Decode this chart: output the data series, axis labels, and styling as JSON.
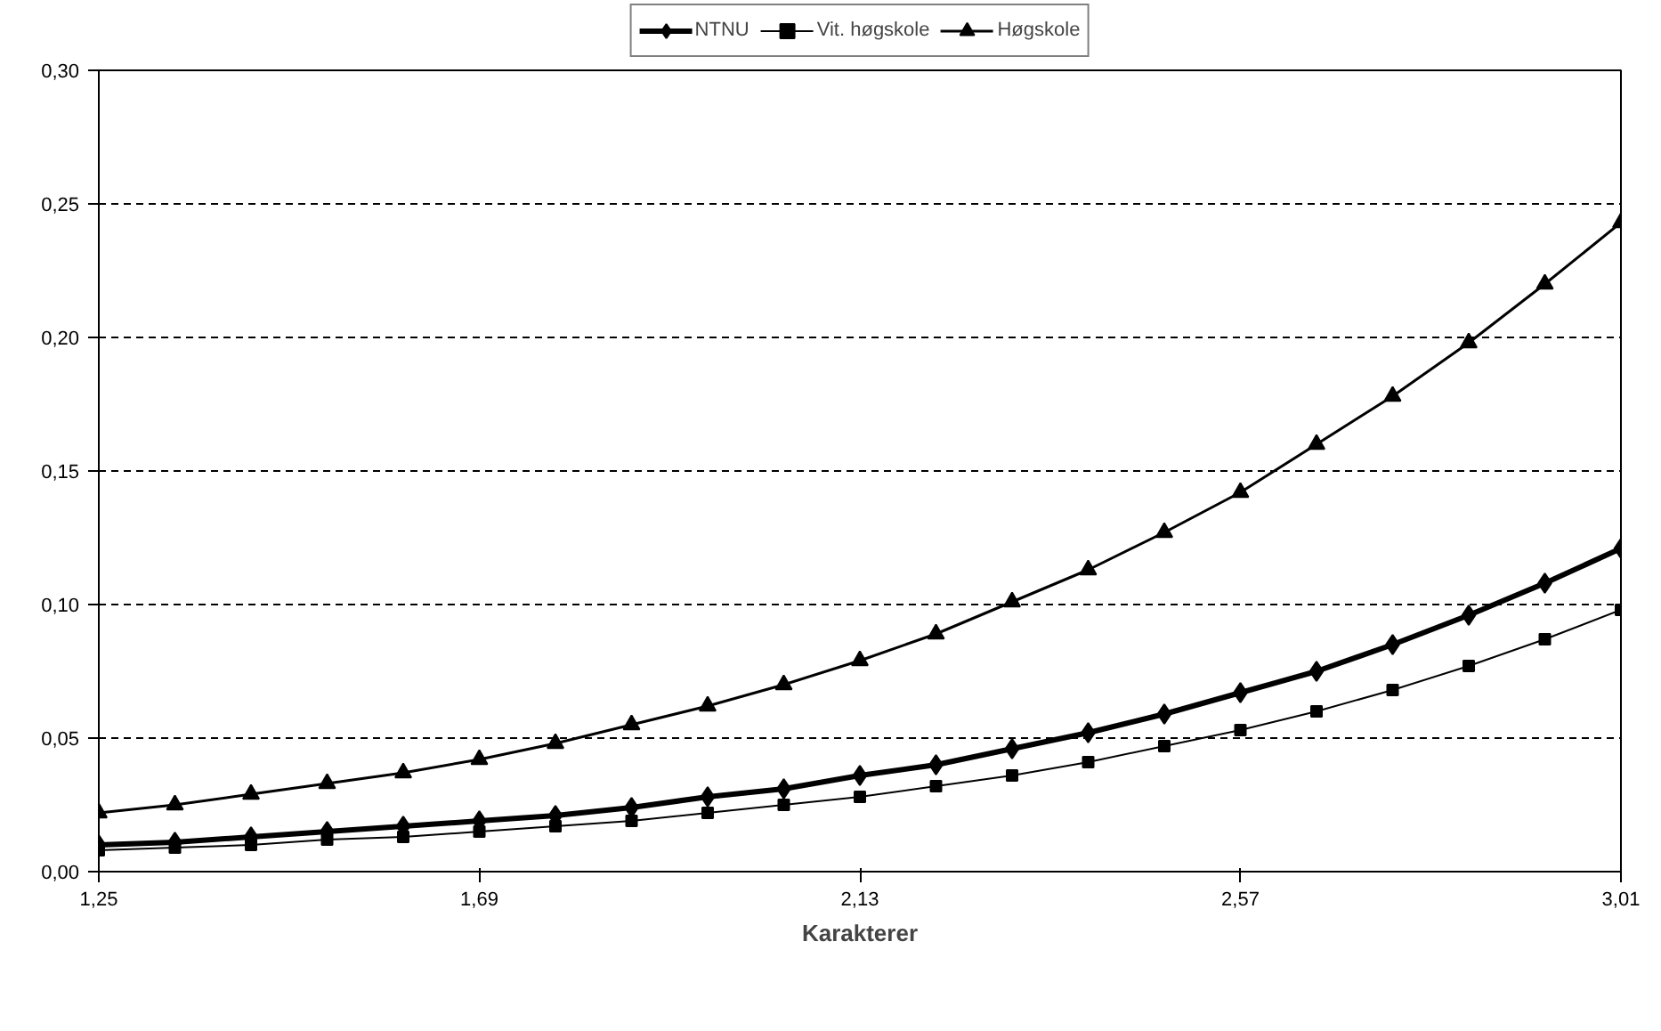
{
  "chart_data": {
    "type": "line",
    "xlabel": "Karakterer",
    "x": [
      1.25,
      1.338,
      1.426,
      1.514,
      1.602,
      1.69,
      1.778,
      1.866,
      1.954,
      2.042,
      2.13,
      2.218,
      2.306,
      2.394,
      2.482,
      2.57,
      2.658,
      2.746,
      2.834,
      2.922,
      3.01
    ],
    "series": [
      {
        "name": "NTNU",
        "color": "#000000",
        "marker": "diamond",
        "values": [
          0.01,
          0.011,
          0.013,
          0.015,
          0.017,
          0.019,
          0.021,
          0.024,
          0.028,
          0.031,
          0.036,
          0.04,
          0.046,
          0.052,
          0.059,
          0.067,
          0.075,
          0.085,
          0.096,
          0.108,
          0.121
        ]
      },
      {
        "name": "Vit. høgskole",
        "color": "#000000",
        "marker": "square",
        "values": [
          0.008,
          0.009,
          0.01,
          0.012,
          0.013,
          0.015,
          0.017,
          0.019,
          0.022,
          0.025,
          0.028,
          0.032,
          0.036,
          0.041,
          0.047,
          0.053,
          0.06,
          0.068,
          0.077,
          0.087,
          0.098
        ]
      },
      {
        "name": "Høgskole",
        "color": "#000000",
        "marker": "triangle",
        "values": [
          0.022,
          0.025,
          0.029,
          0.033,
          0.037,
          0.042,
          0.048,
          0.055,
          0.062,
          0.07,
          0.079,
          0.089,
          0.101,
          0.113,
          0.127,
          0.142,
          0.16,
          0.178,
          0.198,
          0.22,
          0.243
        ]
      }
    ],
    "xlim": [
      1.25,
      3.01
    ],
    "xticks": [
      {
        "value": 1.25,
        "label": "1,25"
      },
      {
        "value": 1.69,
        "label": "1,69"
      },
      {
        "value": 2.13,
        "label": "2,13"
      },
      {
        "value": 2.57,
        "label": "2,57"
      },
      {
        "value": 3.01,
        "label": "3,01"
      }
    ],
    "ylim": [
      0,
      0.3
    ],
    "yticks": [
      {
        "value": 0,
        "label": "0,00"
      },
      {
        "value": 0.05,
        "label": "0,05"
      },
      {
        "value": 0.1,
        "label": "0,10"
      },
      {
        "value": 0.15,
        "label": "0,15"
      },
      {
        "value": 0.2,
        "label": "0,20"
      },
      {
        "value": 0.25,
        "label": "0,25"
      },
      {
        "value": 0.3,
        "label": "0,30"
      }
    ],
    "grid": "y",
    "legend": "top",
    "line_style": "solid"
  }
}
